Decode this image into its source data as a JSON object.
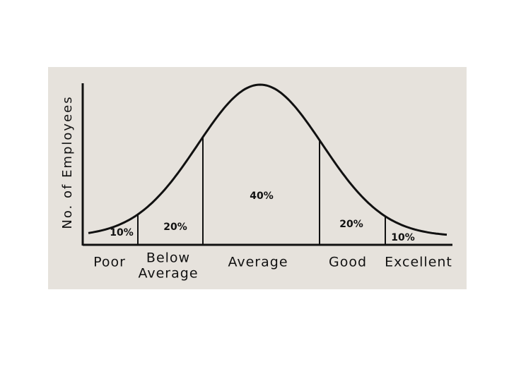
{
  "y_axis_label": "No. of Employees",
  "segments": [
    {
      "label_lines": [
        "Poor"
      ],
      "share": "10%"
    },
    {
      "label_lines": [
        "Below",
        "Average"
      ],
      "share": "20%"
    },
    {
      "label_lines": [
        "Average"
      ],
      "share": "40%"
    },
    {
      "label_lines": [
        "Good"
      ],
      "share": "20%"
    },
    {
      "label_lines": [
        "Excellent"
      ],
      "share": "10%"
    }
  ]
}
